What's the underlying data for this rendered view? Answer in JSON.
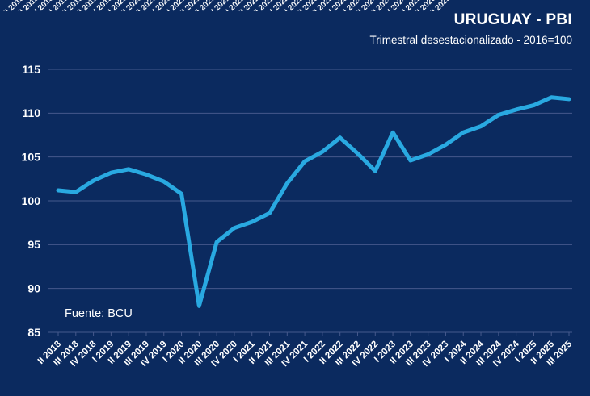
{
  "header": {
    "title": "URUGUAY - PBI",
    "subtitle": "Trimestral desestacionalizado - 2016=100"
  },
  "chart_data": {
    "type": "line",
    "title": "URUGUAY - PBI",
    "subtitle": "Trimestral desestacionalizado - 2016=100",
    "source": "Fuente: BCU",
    "xlabel": "",
    "ylabel": "",
    "ylim": [
      85,
      115
    ],
    "ytick_step": 5,
    "grid": "horizontal",
    "legend": "none",
    "categories": [
      "II 2018",
      "III 2018",
      "IV 2018",
      "I 2019",
      "II 2019",
      "III 2019",
      "IV 2019",
      "I 2020",
      "II 2020",
      "III 2020",
      "IV 2020",
      "I 2021",
      "II 2021",
      "III 2021",
      "IV 2021",
      "I 2022",
      "II 2022",
      "III 2022",
      "IV 2022",
      "I 2023",
      "II 2023",
      "III 2023",
      "IV 2023",
      "I 2024",
      "II 2024",
      "III 2024",
      "IV 2024",
      "I 2025",
      "II 2025",
      "III 2025"
    ],
    "series": [
      {
        "name": "PBI trimestral desestacionalizado (2016=100)",
        "values": [
          101.2,
          101.0,
          102.3,
          103.2,
          103.6,
          103.0,
          102.2,
          100.8,
          88.0,
          95.3,
          96.9,
          97.6,
          98.6,
          102.0,
          104.5,
          105.6,
          107.2,
          105.4,
          103.4,
          107.8,
          104.6,
          105.3,
          106.4,
          107.8,
          108.5,
          109.8,
          110.4,
          110.9,
          111.8,
          111.6
        ]
      }
    ],
    "colors": {
      "background": "#0b2a5f",
      "line": "#29a9e1",
      "grid": "#46598c",
      "text": "#ffffff"
    }
  }
}
